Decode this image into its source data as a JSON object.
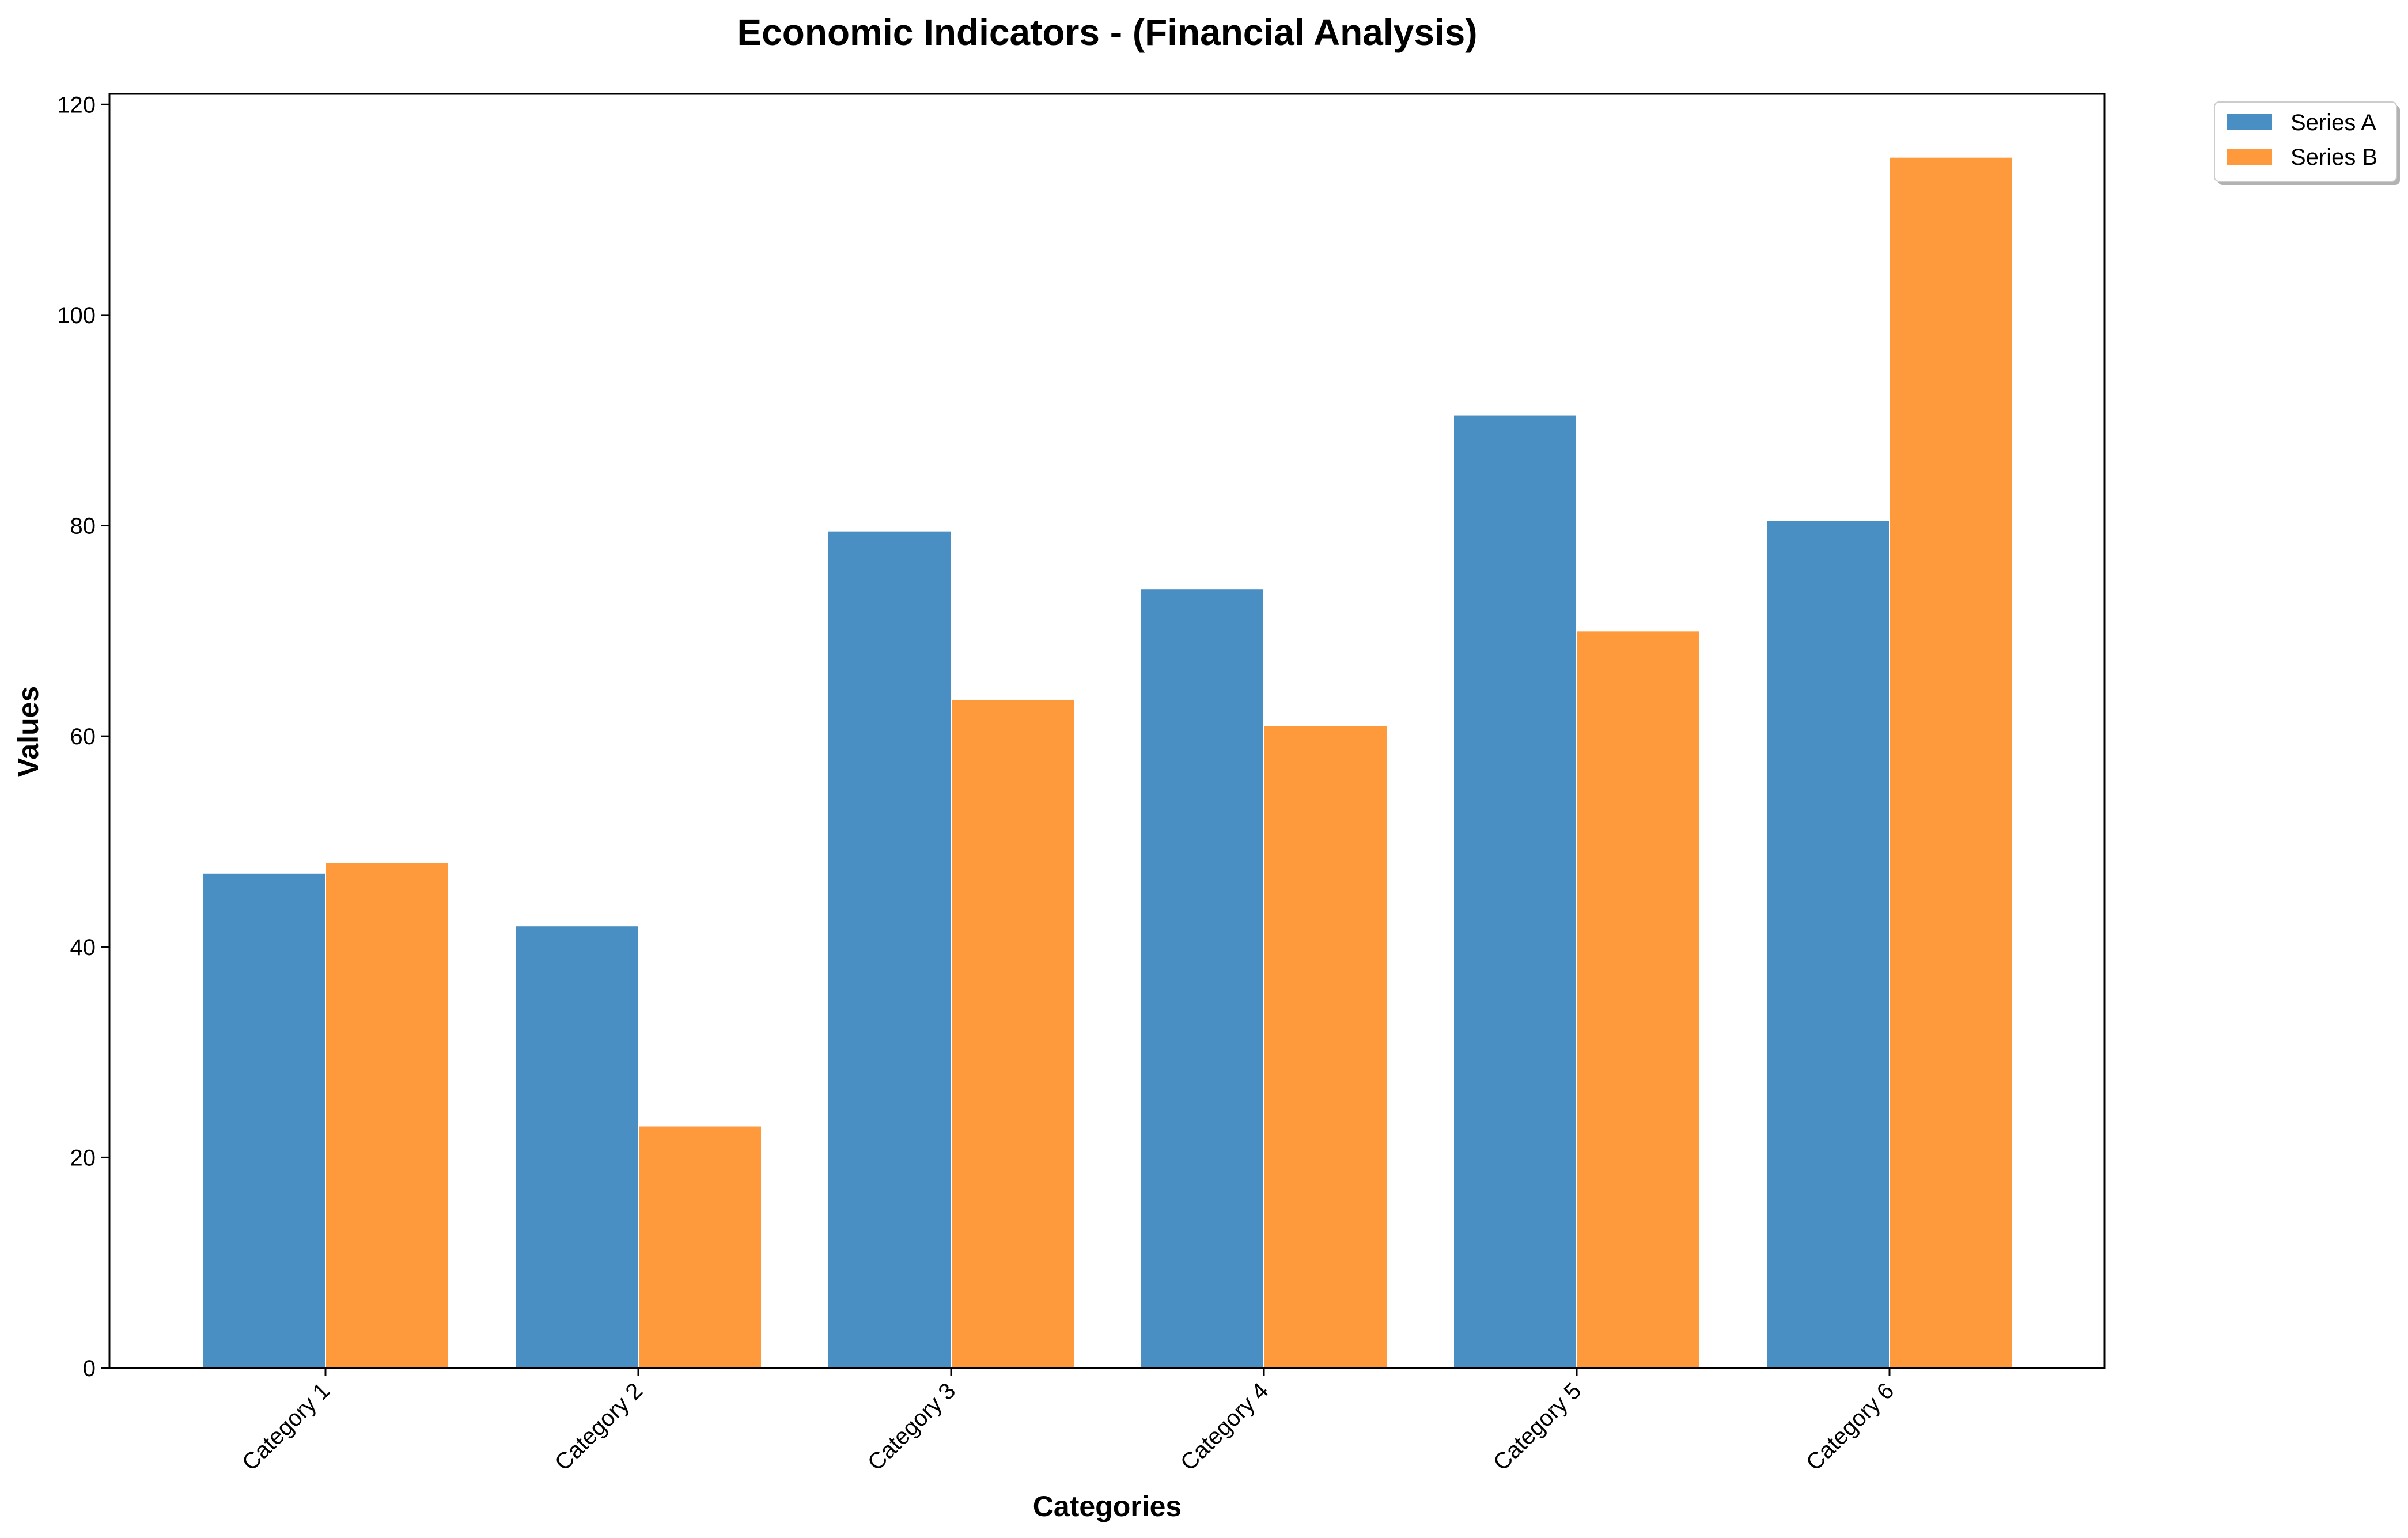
{
  "chart_data": {
    "type": "bar",
    "title": "Economic Indicators - (Financial Analysis)",
    "xlabel": "Categories",
    "ylabel": "Values",
    "categories": [
      "Category 1",
      "Category 2",
      "Category 3",
      "Category 4",
      "Category 5",
      "Category 6"
    ],
    "series": [
      {
        "name": "Series A",
        "color": "#4a8fc3",
        "values": [
          47,
          42,
          79.5,
          74,
          90.5,
          80.5
        ]
      },
      {
        "name": "Series B",
        "color": "#ff9a3c",
        "values": [
          48,
          23,
          63.5,
          61,
          70,
          115
        ]
      }
    ],
    "ylim": [
      0,
      121
    ],
    "yticks": [
      0,
      20,
      40,
      60,
      80,
      100,
      120
    ],
    "grid": false,
    "legend_position": "top-right (outside plot area)"
  }
}
